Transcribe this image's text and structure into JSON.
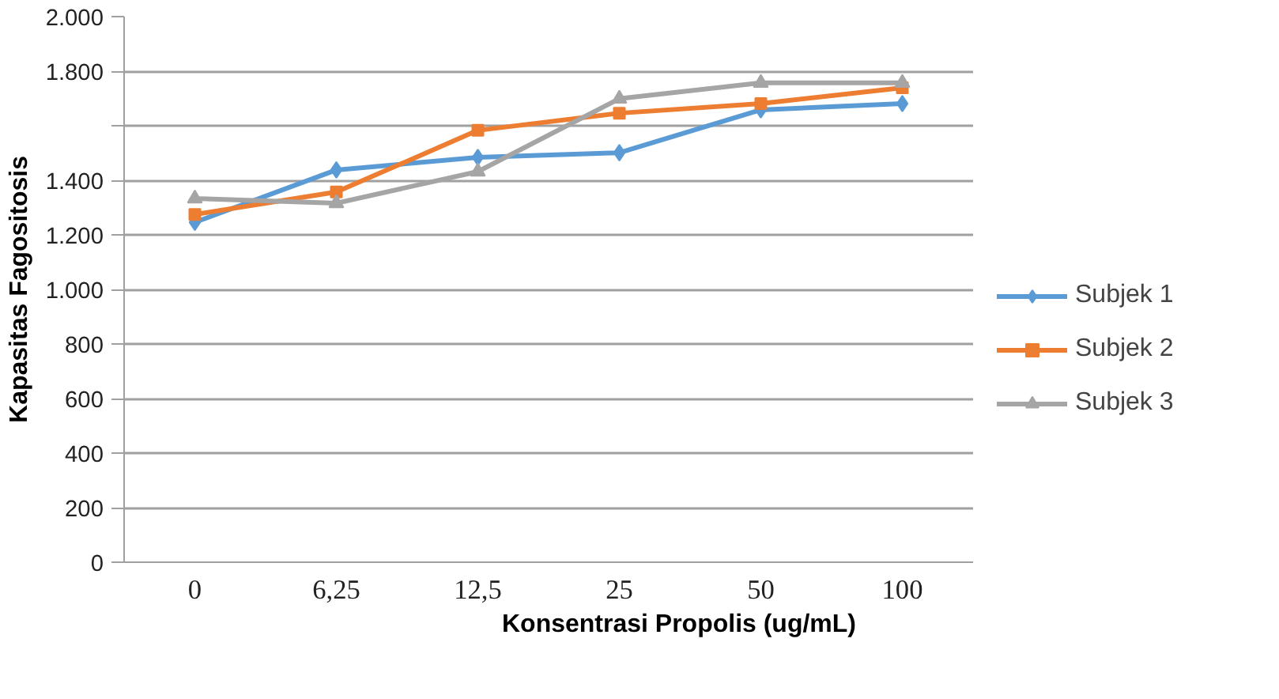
{
  "chart_data": {
    "type": "line",
    "xlabel": "Konsentrasi Propolis (ug/mL)",
    "ylabel": "Kapasitas Fagositosis",
    "categories": [
      "0",
      "6,25",
      "12,5",
      "25",
      "50",
      "100"
    ],
    "series": [
      {
        "name": "Subjek 1",
        "color": "#5b9bd5",
        "marker": "diamond",
        "values": [
          1246,
          1438,
          1484,
          1501,
          1658,
          1681
        ]
      },
      {
        "name": "Subjek 2",
        "color": "#ed7d31",
        "marker": "square",
        "values": [
          1275,
          1357,
          1583,
          1646,
          1681,
          1739
        ]
      },
      {
        "name": "Subjek 3",
        "color": "#a5a5a5",
        "marker": "triangle",
        "values": [
          1333,
          1316,
          1432,
          1699,
          1757,
          1757
        ]
      }
    ],
    "ylim": [
      0,
      2000
    ],
    "yticks": [
      {
        "value": 0,
        "label": "0"
      },
      {
        "value": 200,
        "label": "200"
      },
      {
        "value": 400,
        "label": "400"
      },
      {
        "value": 600,
        "label": "600"
      },
      {
        "value": 800,
        "label": "800"
      },
      {
        "value": 1000,
        "label": "1.000"
      },
      {
        "value": 1200,
        "label": "1.200"
      },
      {
        "value": 1400,
        "label": "1.400"
      },
      {
        "value": 1600,
        "label": null
      },
      {
        "value": 1800,
        "label": "1.800"
      },
      {
        "value": 2000,
        "label": "2.000"
      }
    ],
    "grid": "y",
    "legend": "right",
    "line_style": "solid"
  }
}
